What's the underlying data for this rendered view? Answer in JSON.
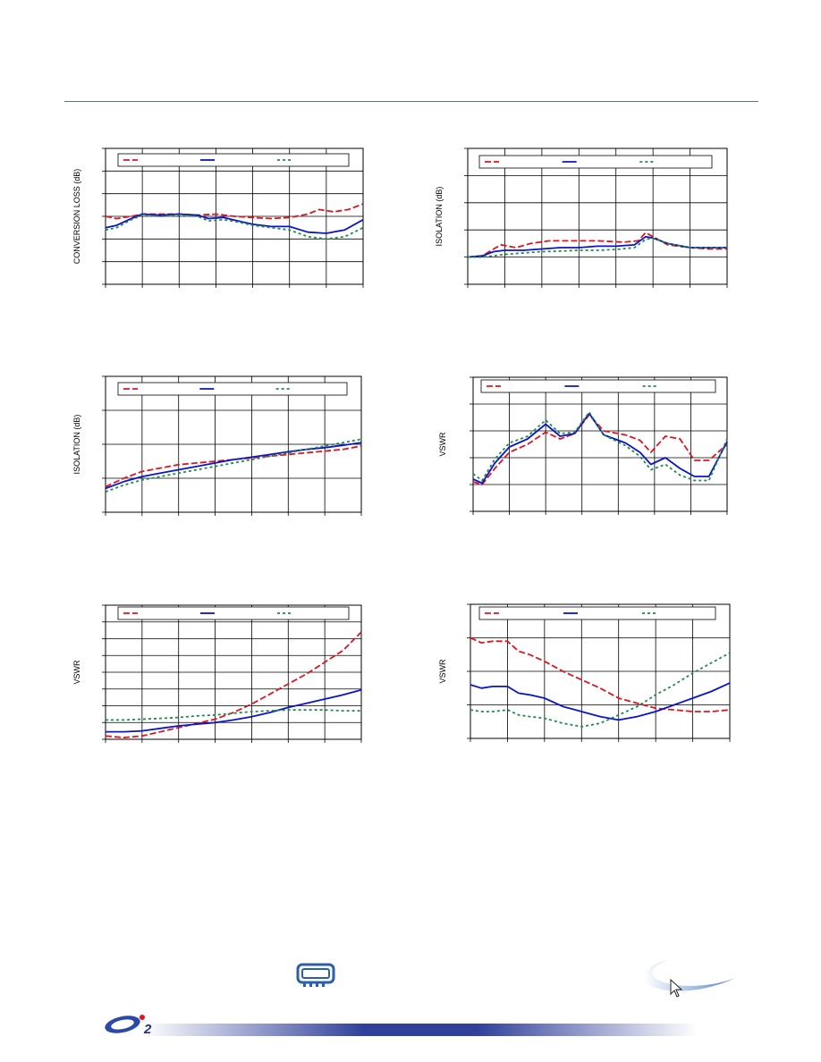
{
  "colors": {
    "red": "#e0141e",
    "blue": "#0a14c8",
    "green": "#1f8a4c",
    "rule": "#5a6f96"
  },
  "legend_labels": [
    "",
    "",
    ""
  ],
  "chart_data": [
    {
      "id": "c1",
      "type": "line",
      "ylabel": "CONVERSION LOSS (dB)",
      "xlim": [
        0,
        7
      ],
      "ylim": [
        0,
        6
      ],
      "series": [
        {
          "color": "red",
          "style": "dash",
          "x": [
            0,
            0.3,
            0.7,
            1,
            1.5,
            2,
            2.5,
            3,
            3.5,
            4,
            4.5,
            5,
            5.5,
            5.8,
            6.2,
            6.6,
            7
          ],
          "y": [
            3.0,
            2.9,
            3.0,
            3.1,
            3.1,
            3.1,
            3.05,
            3.1,
            3.0,
            2.95,
            2.9,
            2.95,
            3.1,
            3.3,
            3.2,
            3.3,
            3.55
          ]
        },
        {
          "color": "blue",
          "style": "solid",
          "x": [
            0,
            0.3,
            0.7,
            1,
            1.5,
            2,
            2.5,
            2.8,
            3.2,
            3.6,
            4,
            4.5,
            5,
            5.5,
            6,
            6.5,
            7
          ],
          "y": [
            2.5,
            2.6,
            2.9,
            3.1,
            3.05,
            3.1,
            3.05,
            2.9,
            2.95,
            2.8,
            2.65,
            2.55,
            2.55,
            2.3,
            2.25,
            2.4,
            2.85
          ]
        },
        {
          "color": "green",
          "style": "dot",
          "x": [
            0,
            0.3,
            0.7,
            1,
            1.5,
            2,
            2.5,
            2.8,
            3.2,
            3.6,
            4,
            4.5,
            5,
            5.5,
            6,
            6.5,
            7
          ],
          "y": [
            2.4,
            2.5,
            2.85,
            3.05,
            3.0,
            3.05,
            3.0,
            2.8,
            2.85,
            2.75,
            2.6,
            2.5,
            2.4,
            2.1,
            2.0,
            2.1,
            2.5
          ]
        }
      ]
    },
    {
      "id": "c2",
      "type": "line",
      "ylabel": "ISOLATION (dB)",
      "xlim": [
        0,
        7
      ],
      "ylim": [
        0,
        5
      ],
      "series": [
        {
          "color": "red",
          "style": "dash",
          "x": [
            0,
            0.4,
            0.7,
            0.9,
            1.3,
            1.7,
            2.2,
            2.8,
            3.5,
            4.2,
            4.6,
            4.8,
            5.0,
            5.4,
            6,
            6.5,
            7
          ],
          "y": [
            1.0,
            1.05,
            1.3,
            1.45,
            1.35,
            1.5,
            1.6,
            1.6,
            1.6,
            1.55,
            1.6,
            1.9,
            1.75,
            1.45,
            1.35,
            1.3,
            1.3
          ]
        },
        {
          "color": "blue",
          "style": "solid",
          "x": [
            0,
            0.4,
            0.7,
            1,
            1.5,
            2,
            2.5,
            3,
            3.5,
            4,
            4.5,
            4.8,
            5.0,
            5.4,
            6,
            6.5,
            7
          ],
          "y": [
            1.0,
            1.05,
            1.2,
            1.25,
            1.25,
            1.3,
            1.35,
            1.35,
            1.4,
            1.4,
            1.45,
            1.75,
            1.7,
            1.5,
            1.35,
            1.35,
            1.35
          ]
        },
        {
          "color": "green",
          "style": "dot",
          "x": [
            0,
            0.4,
            0.7,
            1,
            1.5,
            2,
            2.5,
            3,
            3.5,
            4,
            4.5,
            4.8,
            5.0,
            5.4,
            6,
            6.5,
            7
          ],
          "y": [
            1.0,
            1.0,
            1.05,
            1.1,
            1.15,
            1.2,
            1.22,
            1.25,
            1.25,
            1.28,
            1.35,
            1.65,
            1.7,
            1.5,
            1.35,
            1.35,
            1.35
          ]
        }
      ]
    },
    {
      "id": "c3",
      "type": "line",
      "ylabel": "ISOLATION (dB)",
      "xlim": [
        0,
        7
      ],
      "ylim": [
        0,
        4
      ],
      "series": [
        {
          "color": "red",
          "style": "dash",
          "x": [
            0,
            0.5,
            1,
            1.5,
            2,
            2.5,
            3,
            3.5,
            4,
            4.5,
            5,
            5.5,
            6,
            6.5,
            7
          ],
          "y": [
            0.75,
            1.0,
            1.2,
            1.3,
            1.4,
            1.45,
            1.5,
            1.55,
            1.6,
            1.65,
            1.7,
            1.75,
            1.8,
            1.85,
            1.95
          ]
        },
        {
          "color": "blue",
          "style": "solid",
          "x": [
            0,
            0.5,
            1,
            1.5,
            2,
            2.5,
            3,
            3.5,
            4,
            4.5,
            5,
            5.5,
            6,
            6.5,
            7
          ],
          "y": [
            0.7,
            0.9,
            1.05,
            1.15,
            1.25,
            1.35,
            1.45,
            1.55,
            1.62,
            1.7,
            1.78,
            1.85,
            1.9,
            1.97,
            2.05
          ]
        },
        {
          "color": "green",
          "style": "dot",
          "x": [
            0,
            0.5,
            1,
            1.5,
            2,
            2.5,
            3,
            3.5,
            4,
            4.5,
            5,
            5.5,
            6,
            6.5,
            7
          ],
          "y": [
            0.6,
            0.8,
            0.95,
            1.05,
            1.15,
            1.25,
            1.35,
            1.45,
            1.55,
            1.65,
            1.75,
            1.85,
            1.95,
            2.05,
            2.15
          ]
        }
      ]
    },
    {
      "id": "c4",
      "type": "line",
      "ylabel": "VSWR",
      "xlim": [
        0,
        7
      ],
      "ylim": [
        0,
        5
      ],
      "series": [
        {
          "color": "red",
          "style": "dash",
          "x": [
            0,
            0.25,
            0.6,
            1.0,
            1.5,
            2.0,
            2.4,
            2.8,
            3.2,
            3.6,
            4.2,
            4.6,
            4.9,
            5.3,
            5.7,
            6.1,
            6.5,
            7
          ],
          "y": [
            1.1,
            1.0,
            1.6,
            2.2,
            2.5,
            2.95,
            2.7,
            2.9,
            3.6,
            3.0,
            2.85,
            2.65,
            2.2,
            2.8,
            2.7,
            1.9,
            1.9,
            2.5
          ]
        },
        {
          "color": "blue",
          "style": "solid",
          "x": [
            0,
            0.25,
            0.6,
            1.0,
            1.5,
            2.0,
            2.4,
            2.8,
            3.2,
            3.6,
            4.2,
            4.6,
            4.9,
            5.3,
            5.7,
            6.1,
            6.5,
            7
          ],
          "y": [
            1.2,
            1.05,
            1.8,
            2.4,
            2.7,
            3.25,
            2.8,
            2.9,
            3.65,
            2.85,
            2.55,
            2.2,
            1.75,
            2.0,
            1.6,
            1.3,
            1.3,
            2.6
          ]
        },
        {
          "color": "green",
          "style": "dot",
          "x": [
            0,
            0.25,
            0.6,
            1.0,
            1.5,
            2.0,
            2.4,
            2.8,
            3.2,
            3.6,
            4.2,
            4.6,
            4.9,
            5.3,
            5.7,
            6.1,
            6.5,
            7
          ],
          "y": [
            1.4,
            1.15,
            1.95,
            2.55,
            2.8,
            3.4,
            2.9,
            2.95,
            3.7,
            2.85,
            2.45,
            2.05,
            1.55,
            1.75,
            1.35,
            1.15,
            1.15,
            2.7
          ]
        }
      ]
    },
    {
      "id": "c5",
      "type": "line",
      "ylabel": "VSWR",
      "xlim": [
        0,
        7
      ],
      "ylim": [
        0,
        8
      ],
      "series": [
        {
          "color": "red",
          "style": "dash",
          "x": [
            0,
            0.5,
            1,
            1.5,
            2,
            2.5,
            3,
            3.5,
            4,
            4.5,
            5,
            5.5,
            6,
            6.5,
            7
          ],
          "y": [
            0.2,
            0.1,
            0.2,
            0.45,
            0.7,
            0.95,
            1.2,
            1.6,
            2.1,
            2.7,
            3.3,
            3.9,
            4.6,
            5.3,
            6.4
          ]
        },
        {
          "color": "blue",
          "style": "solid",
          "x": [
            0,
            0.5,
            1,
            1.5,
            2,
            2.5,
            3,
            3.5,
            4,
            4.5,
            5,
            5.5,
            6,
            6.5,
            7
          ],
          "y": [
            0.45,
            0.45,
            0.5,
            0.65,
            0.8,
            0.9,
            1.0,
            1.15,
            1.35,
            1.6,
            1.9,
            2.15,
            2.4,
            2.65,
            2.95
          ]
        },
        {
          "color": "green",
          "style": "dot",
          "x": [
            0,
            0.5,
            1,
            1.5,
            2,
            2.5,
            3,
            3.5,
            4,
            4.5,
            5,
            5.5,
            6,
            6.5,
            7
          ],
          "y": [
            1.15,
            1.15,
            1.2,
            1.25,
            1.3,
            1.4,
            1.45,
            1.55,
            1.65,
            1.7,
            1.75,
            1.75,
            1.75,
            1.7,
            1.7
          ]
        }
      ]
    },
    {
      "id": "c6",
      "type": "line",
      "ylabel": "VSWR",
      "xlim": [
        0,
        7
      ],
      "ylim": [
        0,
        4
      ],
      "series": [
        {
          "color": "red",
          "style": "dash",
          "x": [
            0,
            0.3,
            0.6,
            1,
            1.3,
            1.6,
            2,
            2.5,
            3,
            3.5,
            4,
            4.5,
            5,
            5.5,
            6,
            6.5,
            7
          ],
          "y": [
            3.0,
            2.85,
            2.9,
            2.9,
            2.6,
            2.5,
            2.3,
            2.0,
            1.75,
            1.5,
            1.2,
            1.05,
            0.9,
            0.85,
            0.8,
            0.8,
            0.85
          ]
        },
        {
          "color": "blue",
          "style": "solid",
          "x": [
            0,
            0.3,
            0.6,
            1,
            1.3,
            1.6,
            2,
            2.5,
            3,
            3.5,
            4,
            4.5,
            5,
            5.5,
            6,
            6.5,
            7
          ],
          "y": [
            1.6,
            1.5,
            1.55,
            1.55,
            1.35,
            1.3,
            1.2,
            0.95,
            0.8,
            0.65,
            0.55,
            0.65,
            0.8,
            1.0,
            1.2,
            1.4,
            1.65
          ]
        },
        {
          "color": "green",
          "style": "dot",
          "x": [
            0,
            0.3,
            0.6,
            1,
            1.3,
            1.6,
            2,
            2.5,
            3,
            3.5,
            4,
            4.5,
            5,
            5.5,
            6,
            6.5,
            7
          ],
          "y": [
            0.85,
            0.8,
            0.8,
            0.85,
            0.7,
            0.65,
            0.6,
            0.45,
            0.35,
            0.45,
            0.7,
            0.95,
            1.3,
            1.6,
            1.95,
            2.25,
            2.55
          ]
        }
      ]
    }
  ]
}
